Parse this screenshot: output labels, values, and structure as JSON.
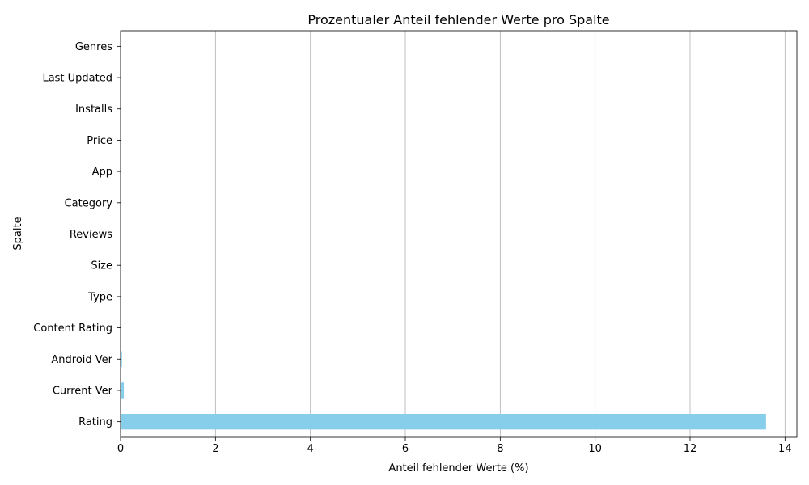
{
  "chart_data": {
    "type": "bar",
    "orientation": "horizontal",
    "title": "Prozentualer Anteil fehlender Werte pro Spalte",
    "xlabel": "Anteil fehlender Werte (%)",
    "ylabel": "Spalte",
    "categories": [
      "Rating",
      "Current Ver",
      "Android Ver",
      "Content Rating",
      "Type",
      "Size",
      "Reviews",
      "Category",
      "App",
      "Price",
      "Installs",
      "Last Updated",
      "Genres"
    ],
    "values": [
      13.6,
      0.07,
      0.03,
      0.0,
      0.0,
      0.0,
      0.0,
      0.0,
      0.0,
      0.0,
      0.0,
      0.0,
      0.0
    ],
    "xlim": [
      0,
      14.25
    ],
    "xticks": [
      0,
      2,
      4,
      6,
      8,
      10,
      12,
      14
    ],
    "grid": "x",
    "bar_color": "#87ceeb"
  }
}
